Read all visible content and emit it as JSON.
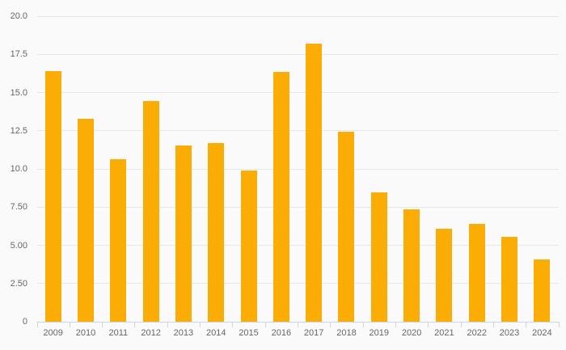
{
  "chart_data": {
    "type": "bar",
    "title": "",
    "xlabel": "",
    "ylabel": "",
    "legend": "none",
    "grid": "horizontal",
    "categories": [
      "2009",
      "2010",
      "2011",
      "2012",
      "2013",
      "2014",
      "2015",
      "2016",
      "2017",
      "2018",
      "2019",
      "2020",
      "2021",
      "2022",
      "2023",
      "2024"
    ],
    "values": [
      16.4,
      13.3,
      10.65,
      14.45,
      11.55,
      11.7,
      9.9,
      16.35,
      18.2,
      12.45,
      8.45,
      7.35,
      6.1,
      6.4,
      5.55,
      4.1
    ],
    "ylim": [
      0,
      20
    ],
    "yticks": [
      {
        "value": 0,
        "label": "0"
      },
      {
        "value": 2.5,
        "label": "2.50"
      },
      {
        "value": 5,
        "label": "5.00"
      },
      {
        "value": 7.5,
        "label": "7.50"
      },
      {
        "value": 10,
        "label": "10.0"
      },
      {
        "value": 12.5,
        "label": "12.5"
      },
      {
        "value": 15,
        "label": "15.0"
      },
      {
        "value": 17.5,
        "label": "17.5"
      },
      {
        "value": 20,
        "label": "20.0"
      }
    ],
    "colors": {
      "bar": "#fbac05",
      "background": "#fafafa",
      "gridline": "#e7e7e7",
      "axis_line": "#ccd6eb",
      "label_text": "#666666"
    }
  }
}
